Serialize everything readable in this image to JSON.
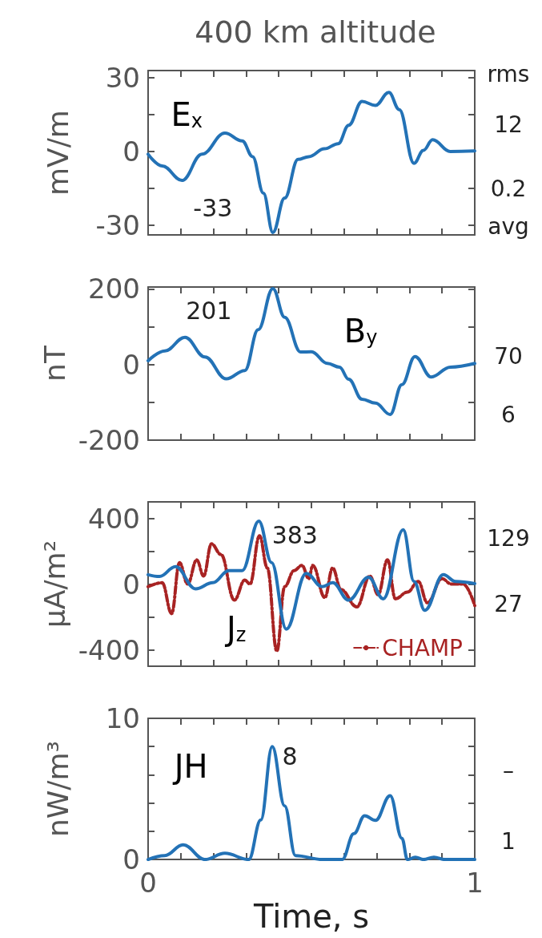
{
  "chart_data": [
    {
      "type": "line",
      "title": "400 km altitude",
      "ylabel": "mV/m",
      "xlim": [
        0,
        1
      ],
      "xticks": [
        {
          "value": 0.1,
          "label": null
        },
        {
          "value": 0.2,
          "label": null
        },
        {
          "value": 0.3,
          "label": null
        },
        {
          "value": 0.4,
          "label": null
        },
        {
          "value": 0.5,
          "label": null
        },
        {
          "value": 0.6,
          "label": null
        },
        {
          "value": 0.7,
          "label": null
        },
        {
          "value": 0.8,
          "label": null
        },
        {
          "value": 0.9,
          "label": null
        }
      ],
      "tick_labels": "y",
      "ylim": [
        -34,
        33
      ],
      "yticks": [
        -30,
        {
          "value": -15,
          "label": null
        },
        0,
        {
          "value": 15,
          "label": null
        },
        30
      ],
      "grid": false,
      "legend": false,
      "marker": "none",
      "line_style": "solid",
      "series": [
        {
          "color": "#2372b6",
          "x": [
            0,
            0.043,
            0.104,
            0.165,
            0.235,
            0.288,
            0.32,
            0.353,
            0.382,
            0.418,
            0.459,
            0.492,
            0.54,
            0.582,
            0.614,
            0.655,
            0.696,
            0.737,
            0.769,
            0.814,
            0.843,
            0.871,
            0.925,
            1.0
          ],
          "values": [
            -1.1,
            -5.9,
            -11.8,
            -1.1,
            7.5,
            4.3,
            -2.1,
            -17,
            -33,
            -19,
            -3.2,
            -2.1,
            1.1,
            3.2,
            10.7,
            20.4,
            18.8,
            24.1,
            17.1,
            -4.8,
            0.5,
            4.8,
            0,
            0.2
          ]
        }
      ],
      "annotations": [
        "E$_{x}$",
        "rms",
        "12",
        "0.2",
        "avg",
        {
          "text": "-33",
          "x": 0.382,
          "y": -33
        }
      ]
    },
    {
      "type": "line",
      "ylabel": "nT",
      "xlim": [
        0,
        1
      ],
      "xticks": [
        {
          "value": 0.1,
          "label": null
        },
        {
          "value": 0.2,
          "label": null
        },
        {
          "value": 0.3,
          "label": null
        },
        {
          "value": 0.4,
          "label": null
        },
        {
          "value": 0.5,
          "label": null
        },
        {
          "value": 0.6,
          "label": null
        },
        {
          "value": 0.7,
          "label": null
        },
        {
          "value": 0.8,
          "label": null
        },
        {
          "value": 0.9,
          "label": null
        }
      ],
      "tick_labels": "y",
      "ylim": [
        -200,
        205
      ],
      "yticks": [
        -200,
        {
          "value": -100,
          "label": null
        },
        0,
        {
          "value": 100,
          "label": null
        },
        200
      ],
      "grid": false,
      "legend": false,
      "marker": "none",
      "line_style": "solid",
      "series": [
        {
          "color": "#2372b6",
          "x": [
            0,
            0.051,
            0.113,
            0.174,
            0.239,
            0.296,
            0.337,
            0.382,
            0.418,
            0.467,
            0.5,
            0.549,
            0.586,
            0.614,
            0.655,
            0.696,
            0.741,
            0.777,
            0.817,
            0.867,
            0.925,
            1.0
          ],
          "values": [
            10,
            36,
            72,
            20,
            -38,
            -16,
            92,
            201,
            125,
            33,
            34,
            3,
            -7,
            -39,
            -92,
            -102,
            -132,
            -53,
            21,
            -33,
            -7,
            3
          ]
        }
      ],
      "annotations": [
        "B$_{y}$",
        "70",
        "6",
        {
          "text": "201",
          "x": 0.382,
          "y": 201
        }
      ]
    },
    {
      "type": "line",
      "ylabel": "μA/m²",
      "xlim": [
        0,
        1
      ],
      "xticks": [
        {
          "value": 0.1,
          "label": null
        },
        {
          "value": 0.2,
          "label": null
        },
        {
          "value": 0.3,
          "label": null
        },
        {
          "value": 0.4,
          "label": null
        },
        {
          "value": 0.5,
          "label": null
        },
        {
          "value": 0.6,
          "label": null
        },
        {
          "value": 0.7,
          "label": null
        },
        {
          "value": 0.8,
          "label": null
        },
        {
          "value": 0.9,
          "label": null
        }
      ],
      "tick_labels": "y",
      "ylim": [
        -500,
        500
      ],
      "yticks": [
        -400,
        {
          "value": -200,
          "label": null
        },
        0,
        {
          "value": 200,
          "label": null
        },
        400
      ],
      "grid": false,
      "legend": "bottom right",
      "marker": "none",
      "line_style": "solid",
      "series": [
        {
          "color": "#2372b6",
          "x": [
            0,
            0.035,
            0.084,
            0.145,
            0.198,
            0.247,
            0.288,
            0.339,
            0.378,
            0.423,
            0.484,
            0.533,
            0.565,
            0.614,
            0.675,
            0.72,
            0.781,
            0.814,
            0.847,
            0.904,
            0.941,
            1.0
          ],
          "values": [
            57,
            46,
            106,
            -29,
            8,
            82,
            82,
            383,
            131,
            -274,
            65,
            -16,
            8,
            -98,
            41,
            -90,
            330,
            16,
            -160,
            57,
            16,
            3
          ]
        },
        {
          "name": "CHAMP",
          "color": "#a82323",
          "line_style": "dashed",
          "x": [
            0,
            0.043,
            0.072,
            0.096,
            0.121,
            0.149,
            0.17,
            0.194,
            0.223,
            0.264,
            0.296,
            0.312,
            0.341,
            0.365,
            0.394,
            0.418,
            0.447,
            0.471,
            0.492,
            0.504,
            0.541,
            0.565,
            0.59,
            0.639,
            0.679,
            0.704,
            0.733,
            0.757,
            0.794,
            0.827,
            0.855,
            0.9,
            0.928,
            0.965,
            1.0
          ],
          "values": [
            -16,
            8,
            -180,
            131,
            0,
            147,
            49,
            245,
            180,
            -98,
            24,
            0,
            294,
            98,
            -408,
            -16,
            82,
            114,
            33,
            114,
            -82,
            98,
            -33,
            -139,
            49,
            -65,
            147,
            -90,
            -49,
            16,
            -114,
            33,
            0,
            0,
            -131
          ]
        }
      ],
      "annotations": [
        "J$_{z}$",
        "129",
        "27",
        {
          "text": "383",
          "x": 0.339,
          "y": 383
        }
      ]
    },
    {
      "type": "line",
      "xlabel": "Time, s",
      "ylabel": "nW/m³",
      "xlim": [
        0,
        1
      ],
      "xticks": [
        0,
        {
          "value": 0.1,
          "label": null
        },
        {
          "value": 0.2,
          "label": null
        },
        {
          "value": 0.3,
          "label": null
        },
        {
          "value": 0.4,
          "label": null
        },
        {
          "value": 0.5,
          "label": null
        },
        {
          "value": 0.6,
          "label": null
        },
        {
          "value": 0.7,
          "label": null
        },
        {
          "value": 0.8,
          "label": null
        },
        {
          "value": 0.9,
          "label": null
        },
        1
      ],
      "ylim": [
        0,
        10
      ],
      "yticks": [
        0,
        {
          "value": 2,
          "label": null
        },
        {
          "value": 4,
          "label": null
        },
        {
          "value": 6,
          "label": null
        },
        {
          "value": 8,
          "label": null
        },
        10
      ],
      "grid": false,
      "legend": false,
      "marker": "none",
      "line_style": "solid",
      "series": [
        {
          "color": "#2372b6",
          "x": [
            0,
            0.051,
            0.107,
            0.174,
            0.235,
            0.308,
            0.345,
            0.38,
            0.418,
            0.451,
            0.533,
            0.594,
            0.63,
            0.663,
            0.696,
            0.741,
            0.777,
            0.794,
            0.818,
            0.843,
            0.875,
            0.908,
            1.0
          ],
          "values": [
            0,
            0.28,
            1.04,
            0,
            0.44,
            0,
            2.8,
            8.0,
            3.8,
            0.28,
            0,
            0,
            1.83,
            3.1,
            2.77,
            4.52,
            1.5,
            0,
            0.16,
            0,
            0.16,
            0,
            0
          ]
        }
      ],
      "annotations": [
        "JH",
        "–",
        "1",
        {
          "text": "8",
          "x": 0.38,
          "y": 8
        }
      ]
    }
  ]
}
